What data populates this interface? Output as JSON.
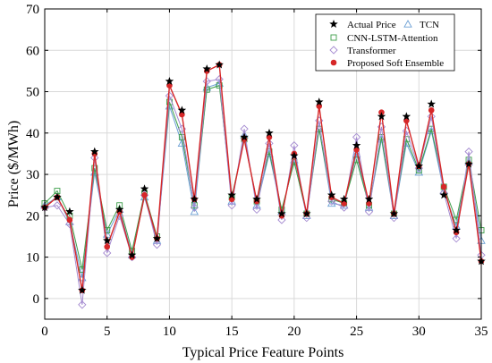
{
  "chart_data": {
    "type": "line",
    "title": "",
    "xlabel": "Typical Price Feature Points",
    "ylabel": "Price ($/MWh)",
    "xlim": [
      0,
      35
    ],
    "ylim": [
      -5,
      70
    ],
    "xticks": [
      0,
      5,
      10,
      15,
      20,
      25,
      30,
      35
    ],
    "yticks": [
      0,
      10,
      20,
      30,
      40,
      50,
      60,
      70
    ],
    "grid": true,
    "legend_position": "top-right",
    "x": [
      0,
      1,
      2,
      3,
      4,
      5,
      6,
      7,
      8,
      9,
      10,
      11,
      12,
      13,
      14,
      15,
      16,
      17,
      18,
      19,
      20,
      21,
      22,
      23,
      24,
      25,
      26,
      27,
      28,
      29,
      30,
      31,
      32,
      33,
      34,
      35
    ],
    "series": [
      {
        "name": "Actual Price",
        "color": "#000000",
        "marker": "star",
        "line": false,
        "values": [
          22.0,
          24.5,
          21.0,
          2.0,
          35.5,
          14.0,
          21.5,
          10.5,
          26.5,
          14.5,
          52.5,
          45.5,
          24.0,
          55.5,
          56.5,
          25.0,
          39.0,
          24.0,
          40.0,
          20.5,
          34.5,
          20.5,
          47.5,
          25.0,
          24.0,
          37.0,
          24.0,
          44.0,
          20.5,
          44.0,
          32.0,
          47.0,
          25.0,
          16.5,
          32.5,
          9.0
        ]
      },
      {
        "name": "TCN",
        "color": "#6a9fd4",
        "marker": "triangle",
        "line": true,
        "values": [
          22.5,
          24.5,
          18.5,
          5.0,
          30.5,
          15.5,
          21.5,
          10.5,
          24.5,
          14.0,
          46.5,
          37.5,
          21.0,
          51.0,
          52.0,
          23.5,
          39.5,
          22.5,
          35.0,
          21.0,
          33.5,
          20.0,
          41.0,
          23.0,
          22.5,
          35.0,
          22.0,
          38.5,
          20.0,
          37.5,
          30.5,
          40.5,
          26.0,
          17.5,
          33.0,
          14.0
        ]
      },
      {
        "name": "CNN-LSTM-Attention",
        "color": "#3d9e4a",
        "marker": "square",
        "line": true,
        "values": [
          23.0,
          26.0,
          20.0,
          7.0,
          31.5,
          16.5,
          22.5,
          11.5,
          25.5,
          15.0,
          47.5,
          39.0,
          22.5,
          50.5,
          51.5,
          24.5,
          38.5,
          23.5,
          35.5,
          21.5,
          33.0,
          20.5,
          41.0,
          24.0,
          23.0,
          33.5,
          22.5,
          39.0,
          20.5,
          38.5,
          31.0,
          41.0,
          27.0,
          19.0,
          33.5,
          16.5
        ]
      },
      {
        "name": "Transformer",
        "color": "#a48ad0",
        "marker": "diamond",
        "line": true,
        "values": [
          22.0,
          22.5,
          18.0,
          -1.5,
          34.0,
          11.0,
          20.0,
          10.0,
          25.0,
          13.0,
          49.0,
          41.0,
          22.0,
          52.5,
          53.0,
          22.5,
          41.0,
          21.5,
          37.5,
          19.0,
          37.0,
          19.5,
          43.0,
          23.5,
          22.0,
          39.0,
          21.0,
          41.5,
          19.5,
          40.5,
          31.5,
          44.0,
          25.5,
          14.5,
          35.5,
          10.5
        ]
      },
      {
        "name": "Proposed Soft Ensemble",
        "color": "#d62728",
        "marker": "circle",
        "line": true,
        "values": [
          22.0,
          24.5,
          19.0,
          2.0,
          35.0,
          12.5,
          21.0,
          10.0,
          25.0,
          14.5,
          51.5,
          44.5,
          24.0,
          55.0,
          56.5,
          24.0,
          38.5,
          23.5,
          39.0,
          20.0,
          35.0,
          20.5,
          46.5,
          24.5,
          23.0,
          36.0,
          23.0,
          45.0,
          20.5,
          43.0,
          32.0,
          45.5,
          27.0,
          16.0,
          32.5,
          9.0
        ]
      }
    ]
  }
}
